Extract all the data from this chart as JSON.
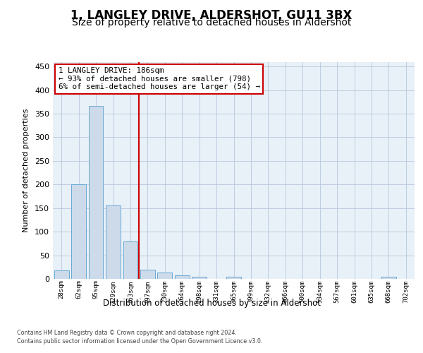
{
  "title": "1, LANGLEY DRIVE, ALDERSHOT, GU11 3BX",
  "subtitle": "Size of property relative to detached houses in Aldershot",
  "xlabel": "Distribution of detached houses by size in Aldershot",
  "ylabel": "Number of detached properties",
  "bar_labels": [
    "28sqm",
    "62sqm",
    "95sqm",
    "129sqm",
    "163sqm",
    "197sqm",
    "230sqm",
    "264sqm",
    "298sqm",
    "331sqm",
    "365sqm",
    "399sqm",
    "432sqm",
    "466sqm",
    "500sqm",
    "534sqm",
    "567sqm",
    "601sqm",
    "635sqm",
    "668sqm",
    "702sqm"
  ],
  "bar_values": [
    18,
    201,
    366,
    155,
    79,
    20,
    14,
    8,
    5,
    0,
    5,
    0,
    0,
    0,
    0,
    0,
    0,
    0,
    0,
    5,
    0
  ],
  "bar_color": "#ccdaea",
  "bar_edge_color": "#6aaad4",
  "vline_index": 4.5,
  "annotation_line1": "1 LANGLEY DRIVE: 186sqm",
  "annotation_line2": "← 93% of detached houses are smaller (798)",
  "annotation_line3": "6% of semi-detached houses are larger (54) →",
  "vline_color": "#cc0000",
  "annotation_box_color": "#ffffff",
  "annotation_box_edge": "#cc0000",
  "ylim": [
    0,
    460
  ],
  "yticks": [
    0,
    50,
    100,
    150,
    200,
    250,
    300,
    350,
    400,
    450
  ],
  "axes_background": "#e8f0f8",
  "title_fontsize": 12,
  "subtitle_fontsize": 10,
  "footer_line1": "Contains HM Land Registry data © Crown copyright and database right 2024.",
  "footer_line2": "Contains public sector information licensed under the Open Government Licence v3.0."
}
